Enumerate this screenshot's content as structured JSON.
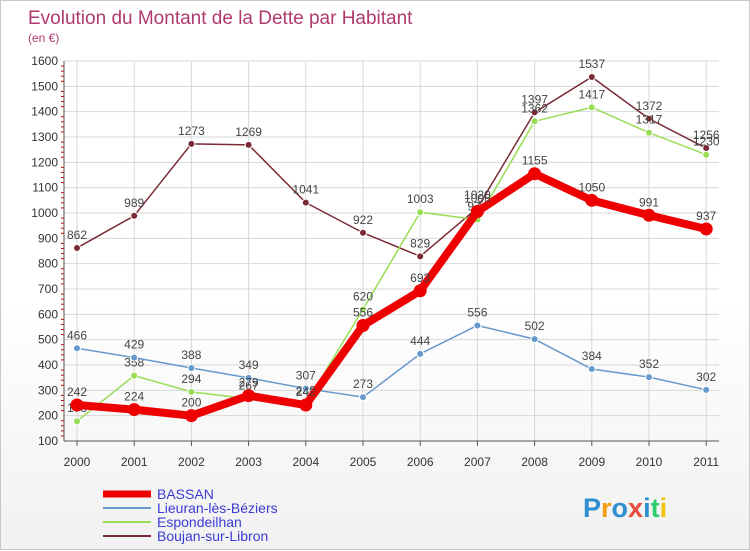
{
  "chart_data": {
    "type": "line",
    "title": "Evolution du Montant de la Dette par Habitant",
    "subtitle": "(en €)",
    "x": [
      "2000",
      "2001",
      "2002",
      "2003",
      "2004",
      "2005",
      "2006",
      "2007",
      "2008",
      "2009",
      "2010",
      "2011"
    ],
    "ylim": [
      100,
      1600
    ],
    "yticks": [
      100,
      200,
      300,
      400,
      500,
      600,
      700,
      800,
      900,
      1000,
      1100,
      1200,
      1300,
      1400,
      1500,
      1600
    ],
    "grid": true,
    "legend_position": "bottom-left",
    "series": [
      {
        "name": "Boujan-sur-Libron",
        "color": "#7a2a34",
        "values": [
          862,
          989,
          1273,
          1269,
          1041,
          922,
          829,
          1020,
          1397,
          1537,
          1372,
          1256
        ]
      },
      {
        "name": "Espondeilhan",
        "color": "#99dd55",
        "values": [
          178,
          358,
          294,
          267,
          248,
          620,
          1003,
          974,
          1362,
          1417,
          1317,
          1230
        ]
      },
      {
        "name": "Lieuran-lès-Béziers",
        "color": "#6699cc",
        "values": [
          466,
          429,
          388,
          349,
          307,
          273,
          444,
          556,
          502,
          384,
          352,
          302
        ]
      },
      {
        "name": "BASSAN",
        "color": "#ee0000",
        "values": [
          242,
          224,
          200,
          279,
          242,
          556,
          693,
          1006,
          1155,
          1050,
          991,
          937
        ]
      }
    ]
  },
  "logo": {
    "text": "Proxiti"
  }
}
